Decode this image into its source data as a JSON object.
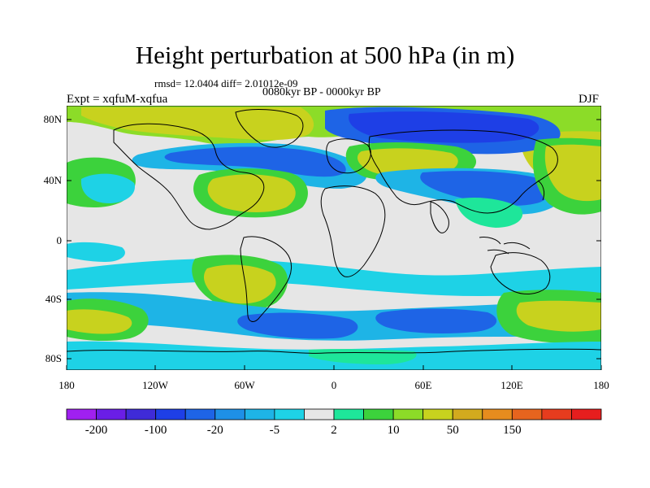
{
  "title": "Height perturbation at 500 hPa (in m)",
  "stats_line": "rmsd= 12.0404 diff= 2.01012e-09",
  "subtitle": "0080kyr BP - 0000kyr BP",
  "experiment": "Expt = xqfuM-xqfua",
  "season": "DJF",
  "lat_ticks": [
    "80N",
    "40N",
    "0",
    "40S",
    "80S"
  ],
  "lon_ticks": [
    "180",
    "120W",
    "60W",
    "0",
    "60E",
    "120E",
    "180"
  ],
  "colorbar": {
    "colors": [
      "#a020f0",
      "#6a1ee6",
      "#3f2bd8",
      "#1e3fe6",
      "#1e64e6",
      "#1e90e6",
      "#1eb4e6",
      "#1ed2e6",
      "#e6e6e6",
      "#1ee69a",
      "#3cd23c",
      "#8cdc28",
      "#c8d21e",
      "#d2aa1e",
      "#e68c1e",
      "#e6641e",
      "#e63c1e",
      "#e61e1e"
    ],
    "labels": [
      "-200",
      "-100",
      "-20",
      "-5",
      "2",
      "10",
      "50",
      "150"
    ]
  },
  "map": {
    "background_color": "#e6e6e6",
    "features": [
      {
        "type": "positive anomaly",
        "where": "Greenland / Arctic",
        "color": "#c8d21e"
      },
      {
        "type": "positive anomaly",
        "where": "North Pacific / Western North America",
        "color": "#c8d21e"
      },
      {
        "type": "positive anomaly",
        "where": "Eastern North America / Atlantic 40N",
        "color": "#c8d21e"
      },
      {
        "type": "positive anomaly",
        "where": "Eastern Europe / Central Asia",
        "color": "#c8d21e"
      },
      {
        "type": "negative anomaly",
        "where": "Eurasian Arctic",
        "color": "#1e3fe6"
      },
      {
        "type": "negative anomaly",
        "where": "North Atlantic 55N",
        "color": "#1e3fe6"
      },
      {
        "type": "negative anomaly",
        "where": "East Asia / North Pacific 40N",
        "color": "#1e64e6"
      },
      {
        "type": "negative anomaly",
        "where": "Southern Ocean 50S",
        "color": "#1e64e6"
      },
      {
        "type": "positive anomaly",
        "where": "South Pacific 55S",
        "color": "#d2aa1e"
      },
      {
        "type": "positive anomaly",
        "where": "Southern Indian Ocean / Australia 55S",
        "color": "#d2aa1e"
      }
    ]
  }
}
